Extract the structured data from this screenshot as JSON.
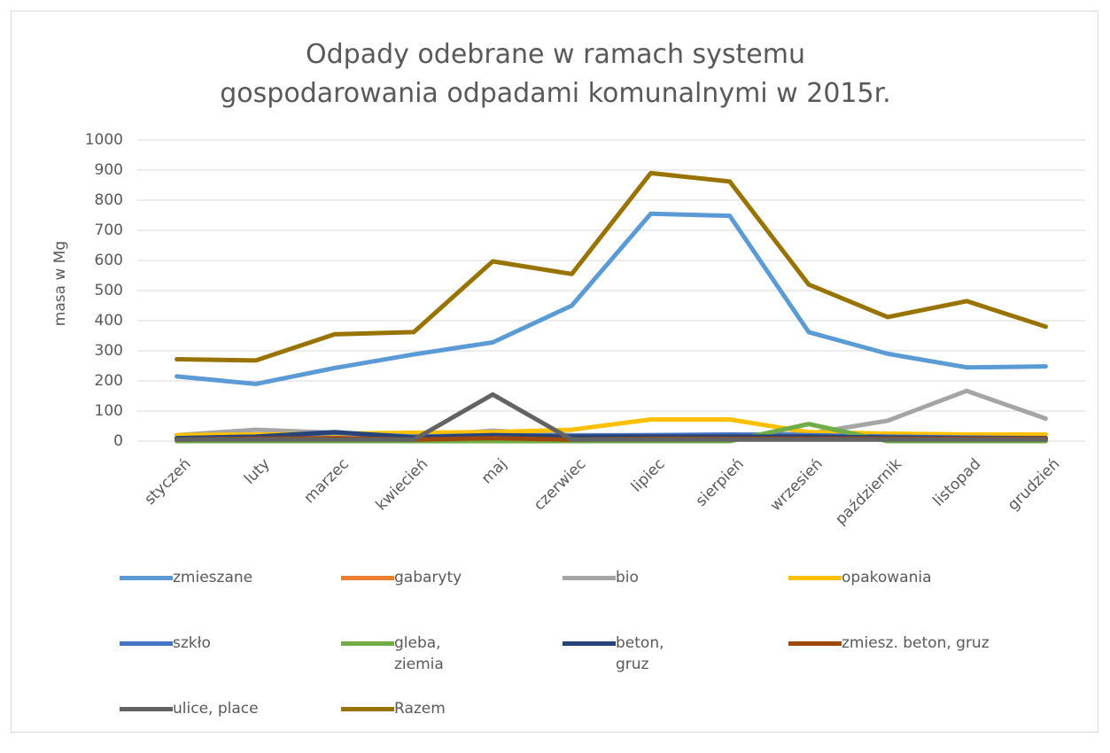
{
  "chart_data": {
    "type": "line",
    "title": "Odpady odebrane w ramach systemu gospodarowania odpadami komunalnymi w 2015r.",
    "y_label": "masa w Mg",
    "categories": [
      "styczeń",
      "luty",
      "marzec",
      "kwiecień",
      "maj",
      "czerwiec",
      "lipiec",
      "sierpień",
      "wrzesień",
      "październik",
      "listopad",
      "grudzień"
    ],
    "series": [
      {
        "name": "zmieszane",
        "color": "#5b9bd5",
        "values": [
          215,
          190,
          243,
          288,
          328,
          450,
          755,
          748,
          362,
          290,
          245,
          248
        ]
      },
      {
        "name": "gabaryty",
        "color": "#ed7d31",
        "values": [
          8,
          8,
          10,
          10,
          12,
          8,
          10,
          10,
          10,
          10,
          8,
          8
        ]
      },
      {
        "name": "bio",
        "color": "#a5a5a5",
        "values": [
          20,
          38,
          28,
          15,
          35,
          20,
          20,
          20,
          25,
          68,
          167,
          75
        ]
      },
      {
        "name": "opakowania",
        "color": "#ffc000",
        "values": [
          20,
          22,
          25,
          28,
          30,
          38,
          72,
          72,
          30,
          25,
          22,
          22
        ]
      },
      {
        "name": "szkło",
        "color": "#4472c4",
        "values": [
          10,
          15,
          28,
          15,
          20,
          18,
          20,
          22,
          20,
          15,
          12,
          10
        ]
      },
      {
        "name": "gleba, ziemia",
        "color": "#70ad47",
        "values": [
          0,
          0,
          0,
          0,
          0,
          0,
          0,
          0,
          57,
          0,
          0,
          0
        ]
      },
      {
        "name": "beton, gruz",
        "color": "#264478",
        "values": [
          10,
          15,
          30,
          12,
          20,
          15,
          15,
          15,
          15,
          12,
          10,
          10
        ]
      },
      {
        "name": "zmiesz. beton, gruz",
        "color": "#9e480e",
        "values": [
          5,
          8,
          10,
          5,
          10,
          5,
          8,
          8,
          8,
          8,
          8,
          8
        ]
      },
      {
        "name": "ulice, place",
        "color": "#636363",
        "values": [
          5,
          5,
          5,
          5,
          155,
          5,
          5,
          5,
          5,
          5,
          5,
          5
        ]
      },
      {
        "name": "Razem",
        "color": "#997300",
        "values": [
          272,
          268,
          355,
          362,
          597,
          555,
          890,
          862,
          520,
          412,
          465,
          380
        ]
      }
    ],
    "ylim": [
      0,
      1000
    ],
    "yticks": [
      0,
      100,
      200,
      300,
      400,
      500,
      600,
      700,
      800,
      900,
      1000
    ],
    "grid": true
  }
}
